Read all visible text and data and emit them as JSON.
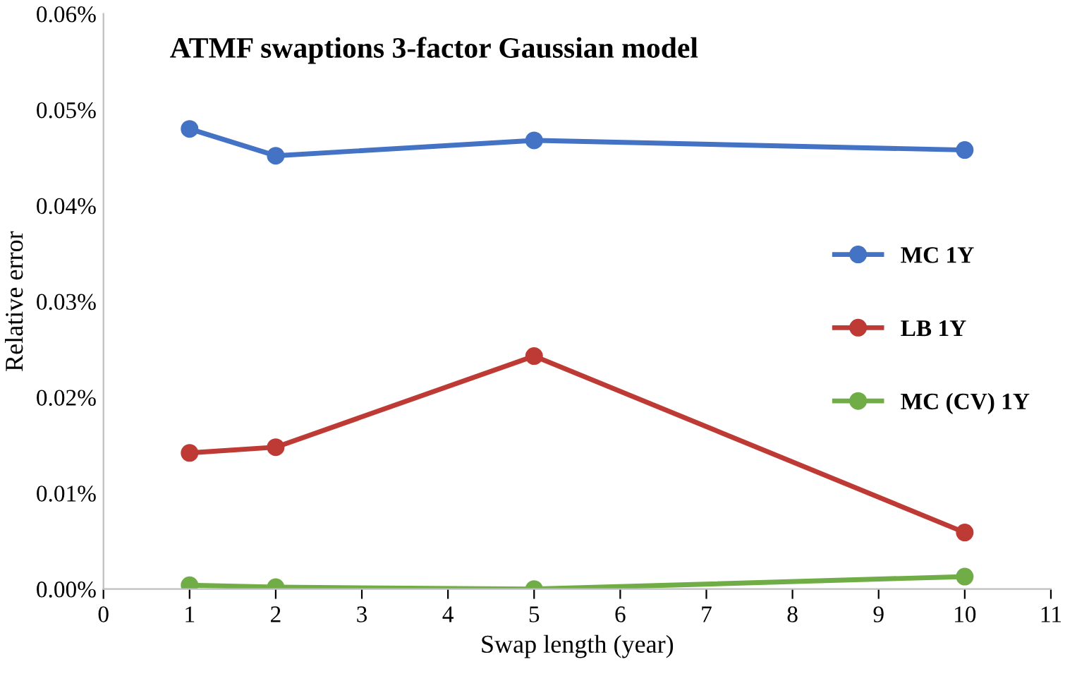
{
  "chart_data": {
    "type": "line",
    "title": "ATMF swaptions 3-factor Gaussian model",
    "xlabel": "Swap length (year)",
    "ylabel": "Relative error",
    "x": [
      1,
      2,
      5,
      10
    ],
    "series": [
      {
        "name": "MC 1Y",
        "color": "#4472c4",
        "values": [
          0.048,
          0.0452,
          0.0468,
          0.0458
        ]
      },
      {
        "name": "LB 1Y",
        "color": "#be3a34",
        "values": [
          0.0142,
          0.0148,
          0.0243,
          0.0059
        ]
      },
      {
        "name": "MC (CV) 1Y",
        "color": "#70ad47",
        "values": [
          0.0004,
          0.0002,
          0.0,
          0.0013
        ]
      }
    ],
    "xlim": [
      0,
      11
    ],
    "xticks": [
      0,
      1,
      2,
      3,
      4,
      5,
      6,
      7,
      8,
      9,
      10,
      11
    ],
    "ylim": [
      0,
      0.06
    ],
    "yticks": [
      {
        "value": 0,
        "label": "0.00%"
      },
      {
        "value": 0.01,
        "label": "0.01%"
      },
      {
        "value": 0.02,
        "label": "0.02%"
      },
      {
        "value": 0.03,
        "label": "0.03%"
      },
      {
        "value": 0.04,
        "label": "0.04%"
      },
      {
        "value": 0.05,
        "label": "0.05%"
      },
      {
        "value": 0.06,
        "label": "0.06%"
      }
    ],
    "marker": "circle",
    "line_style": "solid",
    "grid": false,
    "legend": "right"
  }
}
